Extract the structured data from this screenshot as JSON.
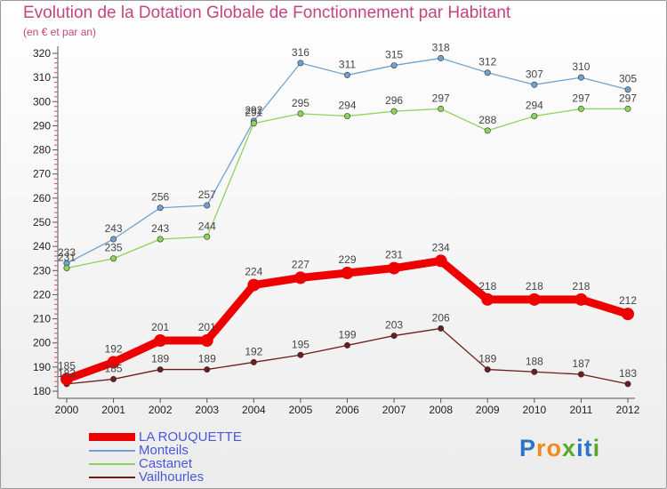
{
  "header": {
    "title": "Evolution de la Dotation Globale de Fonctionnement par Habitant",
    "subtitle": "(en € et par an)"
  },
  "brand": {
    "letters": [
      {
        "ch": "P",
        "color": "#2b74c9"
      },
      {
        "ch": "r",
        "color": "#f08a1c"
      },
      {
        "ch": "o",
        "color": "#f08a1c"
      },
      {
        "ch": "x",
        "color": "#5aa82a"
      },
      {
        "ch": "i",
        "color": "#2b74c9"
      },
      {
        "ch": "t",
        "color": "#2b74c9"
      },
      {
        "ch": "i",
        "color": "#5aa82a"
      }
    ]
  },
  "chart_data": {
    "type": "line",
    "title": "Evolution de la Dotation Globale de Fonctionnement par Habitant",
    "subtitle": "(en € et par an)",
    "xlabel": "",
    "ylabel": "",
    "categories": [
      "2000",
      "2001",
      "2002",
      "2003",
      "2004",
      "2005",
      "2006",
      "2007",
      "2008",
      "2009",
      "2010",
      "2011",
      "2012"
    ],
    "ylim": [
      180,
      320
    ],
    "yticks": [
      180,
      190,
      200,
      210,
      220,
      230,
      240,
      250,
      260,
      270,
      280,
      290,
      300,
      310,
      320
    ],
    "grid": false,
    "legend_position": "bottom-left",
    "series": [
      {
        "name": "LA ROUQUETTE",
        "color": "#ee0000",
        "values": [
          185,
          192,
          201,
          201,
          224,
          227,
          229,
          231,
          234,
          218,
          218,
          218,
          212
        ]
      },
      {
        "name": "Monteils",
        "color": "#6fa2d2",
        "values": [
          233,
          243,
          256,
          257,
          292,
          316,
          311,
          315,
          318,
          312,
          307,
          310,
          305
        ]
      },
      {
        "name": "Castanet",
        "color": "#8fd35a",
        "values": [
          231,
          235,
          243,
          244,
          291,
          295,
          294,
          296,
          297,
          288,
          294,
          297,
          297
        ]
      },
      {
        "name": "Vailhourles",
        "color": "#6b1d1d",
        "values": [
          183,
          185,
          189,
          189,
          192,
          195,
          199,
          203,
          206,
          189,
          188,
          187,
          183
        ]
      }
    ]
  }
}
